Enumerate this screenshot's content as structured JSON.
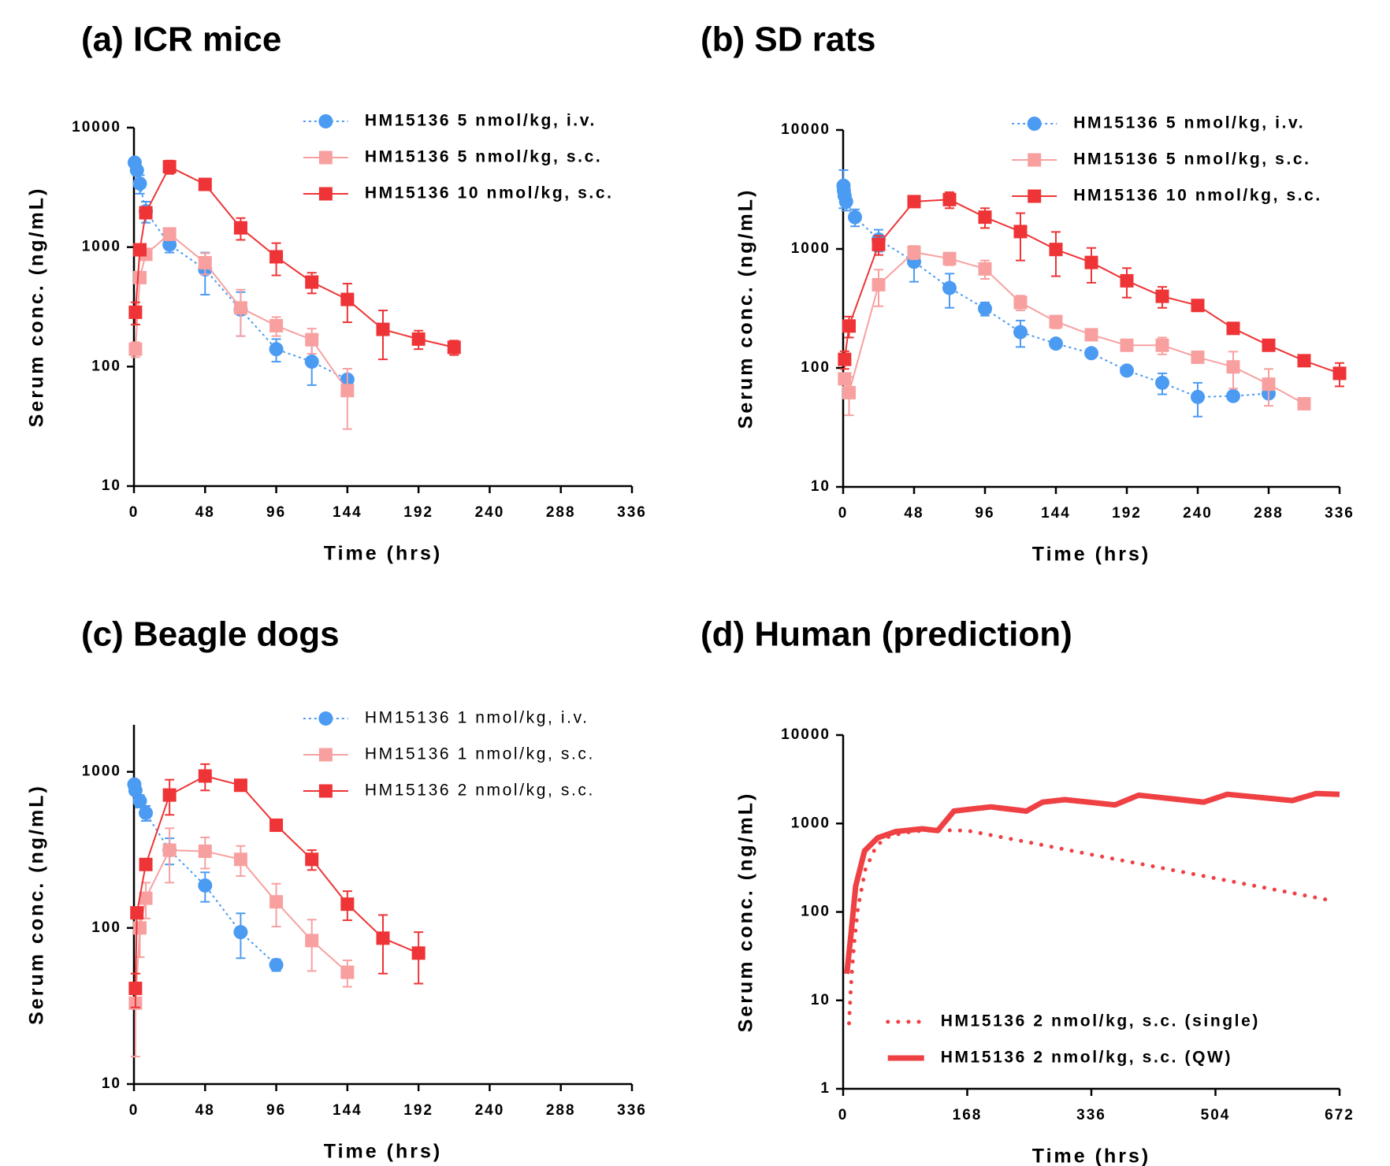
{
  "chart_data": [
    {
      "type": "line",
      "title": "(a) ICR mice",
      "x_label": "Time (hrs)",
      "y_label": "Serum conc. (ng/mL)",
      "xlim": [
        0,
        336
      ],
      "xticks": [
        0,
        48,
        96,
        144,
        192,
        240,
        288,
        336
      ],
      "ylim": [
        10,
        10000
      ],
      "yticks": [
        10,
        100,
        1000,
        10000
      ],
      "log_y": true,
      "legend": "upper right",
      "series": [
        {
          "name": "HM15136 5 nmol/kg, i.v.",
          "color": "#4b9bf2",
          "line_style": "dotted",
          "marker": "circle",
          "x": [
            0.5,
            2,
            4,
            8,
            24,
            48,
            72,
            96,
            120,
            144
          ],
          "values": [
            5100,
            4400,
            3400,
            2000,
            1050,
            650,
            300,
            140,
            110,
            78
          ],
          "errors": [
            null,
            null,
            600,
            400,
            150,
            250,
            120,
            30,
            40,
            null
          ]
        },
        {
          "name": "HM15136 5 nmol/kg, s.c.",
          "color": "#f8a0a0",
          "line_style": "solid",
          "marker": "square",
          "x": [
            1,
            4,
            8,
            24,
            48,
            72,
            96,
            120,
            144
          ],
          "values": [
            140,
            556,
            870,
            1290,
            740,
            310,
            220,
            168,
            63
          ],
          "errors": [
            20,
            null,
            null,
            150,
            150,
            130,
            40,
            40,
            33
          ]
        },
        {
          "name": "HM15136 10 nmol/kg, s.c.",
          "color": "#ee3436",
          "line_style": "solid",
          "marker": "square",
          "x": [
            1,
            4,
            8,
            24,
            48,
            72,
            96,
            120,
            144,
            168,
            192,
            216
          ],
          "values": [
            285,
            950,
            1940,
            4700,
            3350,
            1450,
            830,
            510,
            365,
            205,
            170,
            145
          ],
          "errors": [
            60,
            null,
            null,
            600,
            null,
            300,
            250,
            100,
            130,
            90,
            30,
            20
          ]
        }
      ]
    },
    {
      "type": "line",
      "title": "(b) SD rats",
      "x_label": "Time (hrs)",
      "y_label": "Serum conc. (ng/mL)",
      "xlim": [
        0,
        336
      ],
      "xticks": [
        0,
        48,
        96,
        144,
        192,
        240,
        288,
        336
      ],
      "ylim": [
        10,
        10000
      ],
      "yticks": [
        10,
        100,
        1000,
        10000
      ],
      "log_y": true,
      "legend": "upper right",
      "series": [
        {
          "name": "HM15136 5 nmol/kg, i.v.",
          "color": "#4b9bf2",
          "line_style": "dotted",
          "marker": "circle",
          "x": [
            0.25,
            0.5,
            1,
            2,
            8,
            24,
            48,
            72,
            96,
            120,
            144,
            168,
            192,
            216,
            240,
            264,
            288
          ],
          "values": [
            3400,
            3100,
            2800,
            2500,
            1850,
            1200,
            780,
            470,
            315,
            200,
            160,
            133,
            95,
            75,
            57,
            58,
            61
          ],
          "errors": [
            1200,
            null,
            null,
            400,
            300,
            250,
            250,
            150,
            40,
            50,
            null,
            null,
            null,
            15,
            18,
            null,
            null
          ]
        },
        {
          "name": "HM15136 5 nmol/kg, s.c.",
          "color": "#f8a0a0",
          "line_style": "solid",
          "marker": "square",
          "x": [
            1,
            4,
            24,
            48,
            72,
            96,
            120,
            144,
            168,
            192,
            216,
            240,
            264,
            288,
            312
          ],
          "values": [
            81,
            62,
            500,
            940,
            830,
            680,
            355,
            245,
            190,
            155,
            155,
            123,
            102,
            73,
            50
          ],
          "errors": [
            null,
            22,
            170,
            120,
            100,
            120,
            50,
            30,
            null,
            null,
            25,
            null,
            35,
            25,
            null
          ]
        },
        {
          "name": "HM15136 10 nmol/kg, s.c.",
          "color": "#ee3436",
          "line_style": "solid",
          "marker": "square",
          "x": [
            1,
            4,
            24,
            48,
            72,
            96,
            120,
            144,
            168,
            192,
            216,
            240,
            264,
            288,
            312,
            336
          ],
          "values": [
            118,
            225,
            1090,
            2500,
            2600,
            1850,
            1400,
            990,
            770,
            540,
            400,
            335,
            215,
            155,
            115,
            90
          ],
          "errors": [
            20,
            45,
            200,
            null,
            400,
            350,
            600,
            400,
            250,
            150,
            80,
            null,
            null,
            null,
            null,
            20
          ]
        }
      ]
    },
    {
      "type": "line",
      "title": "(c) Beagle dogs",
      "x_label": "Time (hrs)",
      "y_label": "Serum conc. (ng/mL)",
      "xlim": [
        0,
        336
      ],
      "xticks": [
        0,
        48,
        96,
        144,
        192,
        240,
        288,
        336
      ],
      "ylim": [
        10,
        2000
      ],
      "yticks": [
        10,
        100,
        1000
      ],
      "log_y": true,
      "legend": "upper right",
      "series": [
        {
          "name": "HM15136 1 nmol/kg, i.v.",
          "color": "#4b9bf2",
          "line_style": "dotted",
          "marker": "circle",
          "x": [
            0.25,
            1,
            4,
            8,
            24,
            48,
            72,
            96
          ],
          "values": [
            830,
            760,
            650,
            545,
            315,
            187,
            94,
            58
          ],
          "errors": [
            null,
            null,
            60,
            60,
            60,
            40,
            30,
            5
          ]
        },
        {
          "name": "HM15136 1 nmol/kg, s.c.",
          "color": "#f8a0a0",
          "line_style": "solid",
          "marker": "square",
          "x": [
            1,
            4,
            8,
            24,
            48,
            72,
            96,
            120,
            144
          ],
          "values": [
            33,
            100,
            155,
            315,
            310,
            275,
            147,
            83,
            52
          ],
          "errors": [
            18,
            35,
            40,
            120,
            70,
            60,
            45,
            30,
            10
          ]
        },
        {
          "name": "HM15136 2 nmol/kg, s.c.",
          "color": "#ee3436",
          "line_style": "solid",
          "marker": "square",
          "x": [
            1,
            2,
            8,
            24,
            48,
            72,
            96,
            120,
            144,
            168,
            192
          ],
          "values": [
            41,
            125,
            255,
            710,
            940,
            820,
            455,
            275,
            142,
            86,
            69
          ],
          "errors": [
            10,
            null,
            null,
            180,
            180,
            null,
            null,
            40,
            30,
            35,
            25
          ]
        }
      ]
    },
    {
      "type": "line",
      "title": "(d) Human (prediction)",
      "x_label": "Time (hrs)",
      "y_label": "Serum conc. (ng/mL)",
      "xlim": [
        0,
        672
      ],
      "xticks": [
        0,
        168,
        336,
        504,
        672
      ],
      "ylim": [
        1,
        10000
      ],
      "yticks": [
        1,
        10,
        100,
        1000,
        10000
      ],
      "log_y": true,
      "legend": "lower right",
      "series": [
        {
          "name": "HM15136 2 nmol/kg, s.c. (single)",
          "color": "#ef4043",
          "line_style": "dotted",
          "marker": "none",
          "x": [
            8,
            10,
            12,
            15,
            20,
            30,
            45,
            60,
            80,
            100,
            130,
            168,
            252,
            336,
            420,
            504,
            588,
            660
          ],
          "values": [
            5.5,
            12,
            22,
            45,
            110,
            300,
            560,
            700,
            780,
            820,
            840,
            830,
            610,
            445,
            327,
            240,
            176,
            135
          ]
        },
        {
          "name": "HM15136 2 nmol/kg, s.c. (QW)",
          "color": "#ef4043",
          "line_style": "solid",
          "marker": "none",
          "x": [
            5,
            11,
            17,
            29,
            47,
            71,
            107,
            128,
            150,
            168,
            200,
            248,
            270,
            300,
            368,
            400,
            488,
            520,
            608,
            640,
            672
          ],
          "values": [
            20,
            60,
            195,
            490,
            690,
            810,
            870,
            830,
            1380,
            1440,
            1540,
            1380,
            1740,
            1860,
            1620,
            2090,
            1740,
            2140,
            1820,
            2180,
            2140
          ]
        }
      ]
    }
  ]
}
